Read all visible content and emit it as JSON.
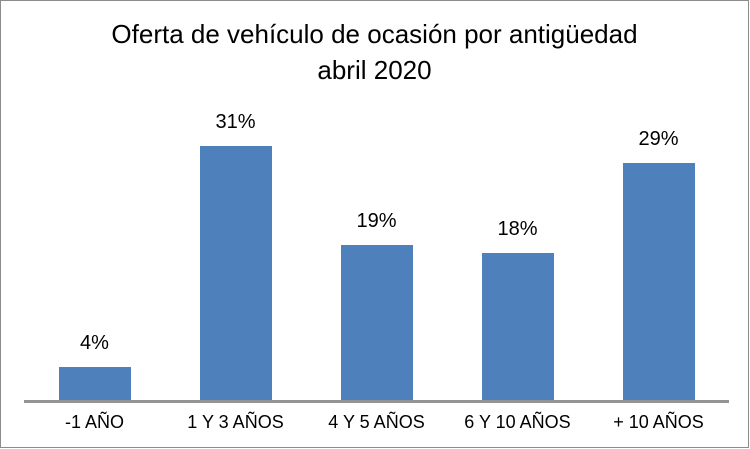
{
  "chart_data": {
    "type": "bar",
    "title": "Oferta de vehículo de ocasión por antigüedad abril 2020",
    "title_lines": [
      "Oferta de vehículo de ocasión por antigüedad",
      "abril 2020"
    ],
    "categories": [
      "-1 AÑO",
      "1 Y 3 AÑOS",
      "4 Y 5 AÑOS",
      "6 Y 10 AÑOS",
      "+ 10 AÑOS"
    ],
    "values": [
      4,
      31,
      19,
      18,
      29
    ],
    "data_labels": [
      "4%",
      "31%",
      "19%",
      "18%",
      "29%"
    ],
    "unit": "%",
    "xlabel": "",
    "ylabel": "",
    "grid": false,
    "legend": false,
    "data_label_position": "outside-end",
    "bar_color": "#4e81bc",
    "axis_line_color": "#949494",
    "frame_border_color": "#8c8c8c",
    "text_color": "#000000",
    "background_color": "#ffffff"
  }
}
